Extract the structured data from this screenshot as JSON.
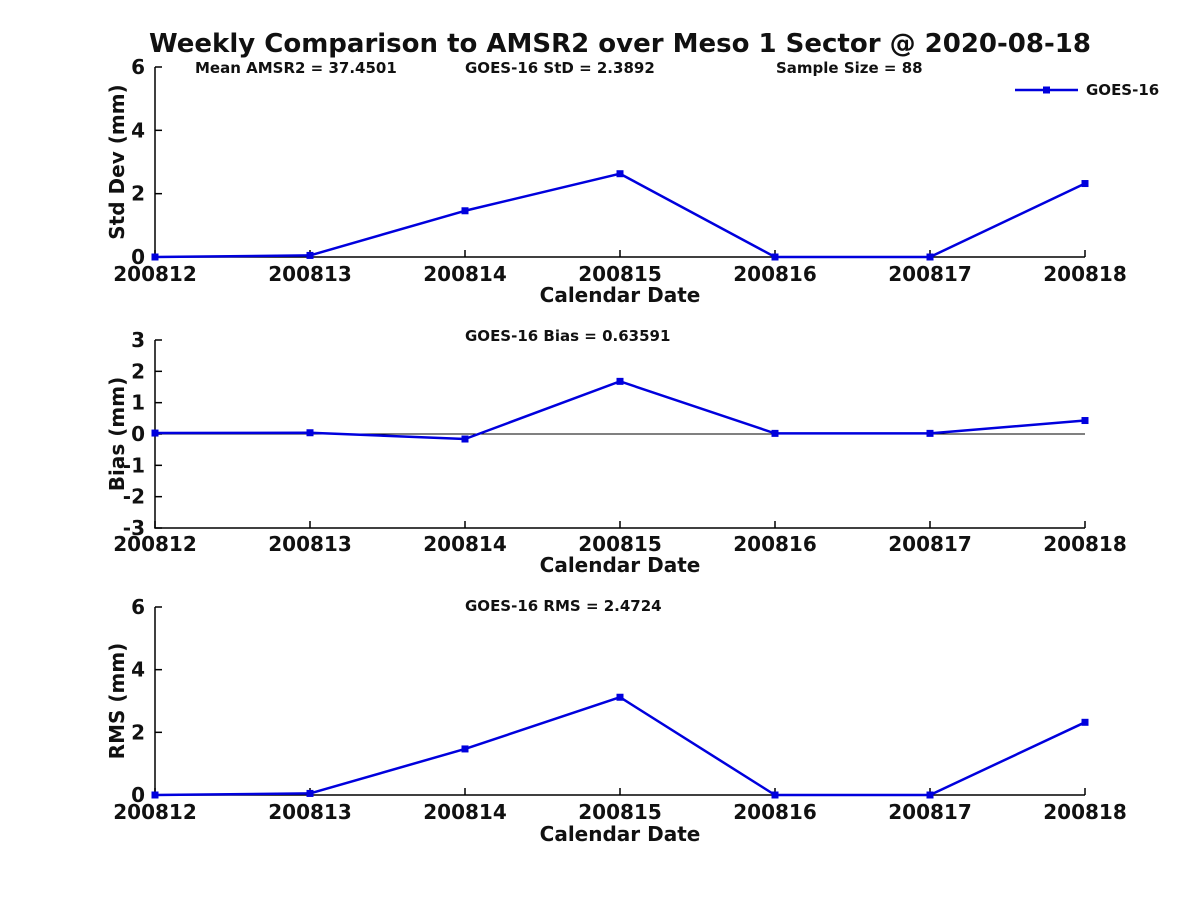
{
  "title": "Weekly Comparison to AMSR2 over Meso 1 Sector @ 2020-08-18",
  "colors": {
    "series": "#0000DD",
    "axis": "#000000",
    "text": "#111111"
  },
  "legend": {
    "label": "GOES-16",
    "position": "top-right"
  },
  "chart_data": [
    {
      "type": "line",
      "name": "std-dev-panel",
      "categories": [
        "200812",
        "200813",
        "200814",
        "200815",
        "200816",
        "200817",
        "200818"
      ],
      "series": [
        {
          "name": "GOES-16",
          "values": [
            0.0,
            0.05,
            1.46,
            2.63,
            0.0,
            0.0,
            2.32
          ]
        }
      ],
      "xlabel": "Calendar Date",
      "ylabel": "Std Dev (mm)",
      "ylim": [
        0,
        6
      ],
      "yticks": [
        0,
        2,
        4,
        6
      ],
      "grid": false,
      "zero_line": false,
      "legend_visible": true,
      "title_annotations": [
        {
          "text": "Mean AMSR2 = 37.4501",
          "x": 195
        },
        {
          "text": "GOES-16 StD = 2.3892",
          "x": 465
        },
        {
          "text": "Sample Size = 88",
          "x": 776
        }
      ]
    },
    {
      "type": "line",
      "name": "bias-panel",
      "categories": [
        "200812",
        "200813",
        "200814",
        "200815",
        "200816",
        "200817",
        "200818"
      ],
      "series": [
        {
          "name": "GOES-16",
          "values": [
            0.03,
            0.04,
            -0.16,
            1.68,
            0.02,
            0.02,
            0.43
          ]
        }
      ],
      "xlabel": "Calendar Date",
      "ylabel": "Bias (mm)",
      "ylim": [
        -3,
        3
      ],
      "yticks": [
        3,
        2,
        1,
        0,
        -1,
        -2,
        -3
      ],
      "grid": false,
      "zero_line": true,
      "legend_visible": false,
      "title_annotations": [
        {
          "text": "GOES-16 Bias  = 0.63591",
          "x": 465
        }
      ]
    },
    {
      "type": "line",
      "name": "rms-panel",
      "categories": [
        "200812",
        "200813",
        "200814",
        "200815",
        "200816",
        "200817",
        "200818"
      ],
      "series": [
        {
          "name": "GOES-16",
          "values": [
            0.0,
            0.05,
            1.47,
            3.12,
            0.0,
            0.0,
            2.32
          ]
        }
      ],
      "xlabel": "Calendar Date",
      "ylabel": "RMS (mm)",
      "ylim": [
        0,
        6
      ],
      "yticks": [
        0,
        2,
        4,
        6
      ],
      "grid": false,
      "zero_line": false,
      "legend_visible": false,
      "title_annotations": [
        {
          "text": "GOES-16 RMS = 2.4724",
          "x": 465
        }
      ]
    }
  ]
}
